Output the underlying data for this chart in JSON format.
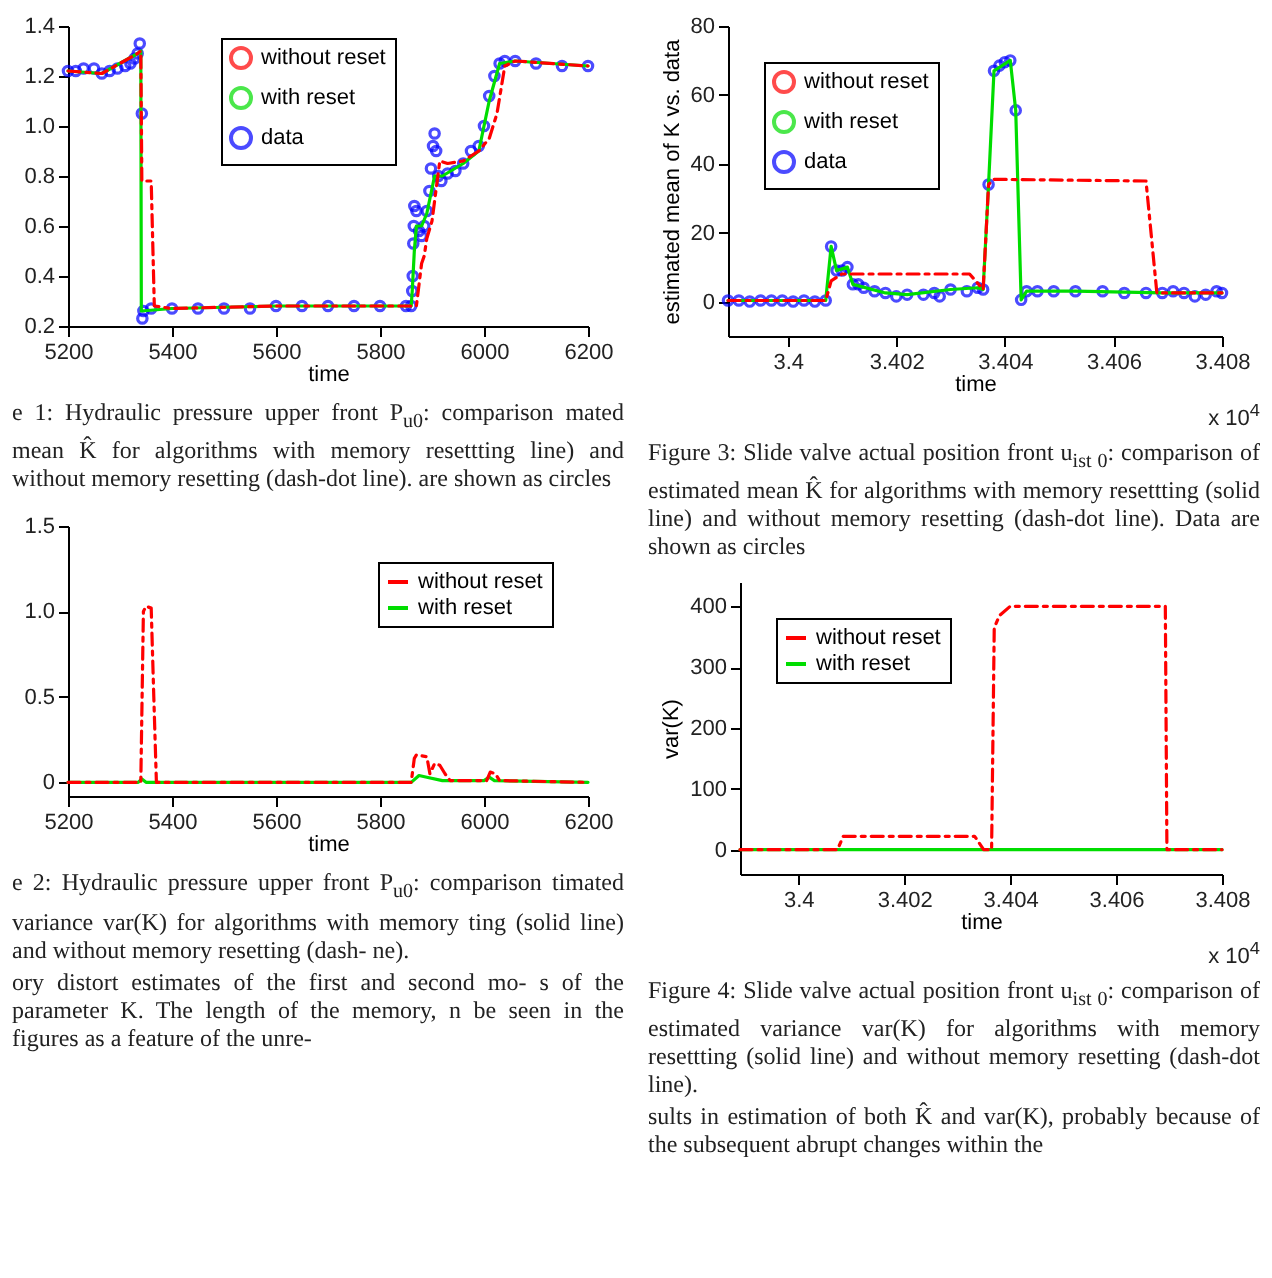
{
  "chart_data": [
    {
      "type": "line",
      "xlabel": "time",
      "xlim": [
        5200,
        6200
      ],
      "xticks": [
        5200,
        5400,
        5600,
        5800,
        6000,
        6200
      ],
      "ylim": [
        0.2,
        1.4
      ],
      "yticks": [
        0.2,
        0.4,
        0.6,
        0.8,
        {
          "value": 1,
          "label": "1.0"
        },
        1.2,
        1.4
      ],
      "grid": false,
      "legend": "top",
      "series": [
        {
          "name": "without reset",
          "color": "#ff0000",
          "line_style": "dashed",
          "x": [
            5200,
            5265,
            5334,
            5340,
            5342,
            5360,
            5366,
            5400,
            5600,
            5870,
            5880,
            5885,
            5890,
            5900,
            5915,
            5930,
            5960,
            5990,
            6010,
            6025,
            6040,
            6060,
            6200
          ],
          "values": [
            1.22,
            1.21,
            1.29,
            1.3,
            0.78,
            0.78,
            0.28,
            0.27,
            0.28,
            0.28,
            0.45,
            0.48,
            0.55,
            0.62,
            0.86,
            0.85,
            0.86,
            0.9,
            0.95,
            1.05,
            1.24,
            1.26,
            1.24
          ]
        },
        {
          "name": "with reset",
          "color": "#00dd00",
          "line_style": "solid",
          "x": [
            5200,
            5265,
            5334,
            5340,
            5341,
            5400,
            5600,
            5860,
            5862,
            5866,
            5870,
            5880,
            5890,
            5905,
            5920,
            5960,
            5990,
            6010,
            6030,
            6060,
            6200
          ],
          "values": [
            1.22,
            1.21,
            1.29,
            1.3,
            0.26,
            0.27,
            0.28,
            0.28,
            0.34,
            0.5,
            0.6,
            0.6,
            0.65,
            0.8,
            0.8,
            0.85,
            0.9,
            1.1,
            1.25,
            1.26,
            1.24
          ]
        },
        {
          "name": "data",
          "type": "scatter",
          "marker": "circle",
          "color": "#0000ff",
          "x": [
            5200,
            5215,
            5230,
            5250,
            5265,
            5280,
            5295,
            5310,
            5320,
            5328,
            5334,
            5338,
            5342,
            5343,
            5345,
            5360,
            5400,
            5450,
            5500,
            5550,
            5600,
            5650,
            5700,
            5750,
            5800,
            5850,
            5860,
            5862,
            5863,
            5864,
            5865,
            5866,
            5870,
            5875,
            5880,
            5885,
            5890,
            5895,
            5898,
            5902,
            5905,
            5908,
            5912,
            5918,
            5930,
            5945,
            5960,
            5975,
            5990,
            6000,
            6010,
            6020,
            6030,
            6040,
            6060,
            6100,
            6150,
            6200
          ],
          "values": [
            1.22,
            1.22,
            1.23,
            1.23,
            1.21,
            1.22,
            1.23,
            1.24,
            1.25,
            1.27,
            1.29,
            1.33,
            1.05,
            0.23,
            0.26,
            0.27,
            0.27,
            0.27,
            0.27,
            0.27,
            0.28,
            0.28,
            0.28,
            0.28,
            0.28,
            0.28,
            0.28,
            0.34,
            0.4,
            0.53,
            0.6,
            0.68,
            0.66,
            0.58,
            0.56,
            0.6,
            0.66,
            0.74,
            0.83,
            0.92,
            0.97,
            0.9,
            0.8,
            0.78,
            0.81,
            0.82,
            0.85,
            0.9,
            0.92,
            1.0,
            1.12,
            1.2,
            1.25,
            1.26,
            1.26,
            1.25,
            1.24,
            1.24
          ]
        }
      ],
      "annotations": [
        "e 1: Hydraulic pressure upper front P$_{u0}$: comparison mated mean K̂ for algorithms with memory resettting line) and without memory resetting (dash-dot line). are shown as circles"
      ]
    },
    {
      "type": "line",
      "xlabel": "time",
      "xlim": [
        5200,
        6200
      ],
      "xticks": [
        5200,
        5400,
        5600,
        5800,
        6000,
        6200
      ],
      "ylim": [
        -0.08,
        1.5
      ],
      "yticks": [
        0,
        0.5,
        {
          "value": 1,
          "label": "1.0"
        },
        1.5
      ],
      "grid": false,
      "legend": "top right",
      "series": [
        {
          "name": "without reset",
          "color": "#ff0000",
          "line_style": "dashed",
          "x": [
            5200,
            5340,
            5345,
            5350,
            5360,
            5365,
            5370,
            5860,
            5866,
            5870,
            5890,
            5896,
            5905,
            5915,
            5925,
            5935,
            6005,
            6012,
            6022,
            6030,
            6200
          ],
          "values": [
            0,
            0,
            1.0,
            1.03,
            1.02,
            0.5,
            0,
            0,
            0.14,
            0.16,
            0.15,
            0.05,
            0.11,
            0.1,
            0.05,
            0.01,
            0.01,
            0.06,
            0.05,
            0.01,
            0
          ]
        },
        {
          "name": "with reset",
          "color": "#00dd00",
          "line_style": "solid",
          "x": [
            5200,
            5335,
            5342,
            5350,
            5860,
            5875,
            5890,
            5920,
            6000,
            6010,
            6020,
            6200
          ],
          "values": [
            0,
            0,
            0.02,
            0,
            0,
            0.04,
            0.03,
            0.01,
            0.01,
            0.03,
            0.01,
            0
          ]
        }
      ],
      "annotations": [
        "e 2: Hydraulic pressure upper front P$_{u0}$: comparison timated variance var(K) for algorithms with memory ting (solid line) and without memory resetting (dash- ne).",
        "ory distort estimates of the first and second mo- s of the parameter K. The length of the memory, n be seen in the figures as a feature of the unre-"
      ]
    },
    {
      "type": "line",
      "xlabel": "time",
      "ylabel": "estimated mean of K vs. data",
      "xlim": [
        3.3989,
        3.408
      ],
      "xticks": [
        3.4,
        3.402,
        3.404,
        3.406,
        3.408
      ],
      "ylim": [
        -10,
        80
      ],
      "yticks": [
        0,
        20,
        40,
        60,
        80
      ],
      "grid": false,
      "legend": "top left",
      "series": [
        {
          "name": "without reset",
          "color": "#ff0000",
          "line_style": "dashed",
          "x": [
            3.3989,
            3.4007,
            3.4008,
            3.401,
            3.4012,
            3.40335,
            3.4036,
            3.4037,
            3.4038,
            3.4066,
            3.4068,
            3.4073,
            3.408
          ],
          "values": [
            0.3,
            0.3,
            6,
            8,
            8,
            8,
            3.5,
            34,
            35.5,
            35,
            2.5,
            2.5,
            2.5
          ]
        },
        {
          "name": "with reset",
          "color": "#00dd00",
          "line_style": "solid",
          "x": [
            3.3989,
            3.4007,
            3.4008,
            3.4009,
            3.4011,
            3.4012,
            3.4018,
            3.4022,
            3.403,
            3.4035,
            3.4036,
            3.4037,
            3.4038,
            3.4041,
            3.4042,
            3.4043,
            3.4044,
            3.4053,
            3.4069,
            3.408
          ],
          "values": [
            0.3,
            0.3,
            16,
            9,
            10,
            5,
            2.5,
            2,
            3.5,
            4,
            3.5,
            34,
            67,
            70,
            55.5,
            0.5,
            3,
            3,
            2.5,
            2.5
          ]
        },
        {
          "name": "data",
          "type": "scatter",
          "marker": "circle",
          "color": "#0000ff",
          "x": [
            3.3989,
            3.3991,
            3.3993,
            3.3995,
            3.3997,
            3.3999,
            3.4001,
            3.4003,
            3.4005,
            3.4007,
            3.4008,
            3.4009,
            3.401,
            3.4011,
            3.4012,
            3.4013,
            3.4014,
            3.4016,
            3.4018,
            3.402,
            3.4022,
            3.4025,
            3.4027,
            3.4028,
            3.403,
            3.4033,
            3.4035,
            3.4036,
            3.4037,
            3.4038,
            3.4039,
            3.404,
            3.4041,
            3.4042,
            3.4043,
            3.4044,
            3.4046,
            3.4049,
            3.4053,
            3.4058,
            3.4062,
            3.4066,
            3.4069,
            3.4071,
            3.4073,
            3.4075,
            3.4077,
            3.4079,
            3.408
          ],
          "values": [
            0.3,
            0.3,
            0,
            0.3,
            0.3,
            0.3,
            0,
            0.3,
            0,
            0.3,
            16,
            9,
            9,
            10,
            5,
            5,
            4,
            3,
            2.5,
            1.5,
            2,
            2,
            2.5,
            1.5,
            3.5,
            3,
            4,
            3.5,
            34,
            67,
            68.5,
            69.5,
            70,
            55.5,
            0.5,
            3,
            3,
            3,
            3,
            3,
            2.5,
            2.5,
            2.5,
            3,
            2.5,
            1.5,
            2,
            3,
            2.5
          ]
        }
      ],
      "annotations": [
        "x 10$^{4}$",
        "Figure 3: Slide valve actual position front u$_{ist 0}$: comparison of estimated mean K̂ for algorithms with memory resettting (solid line) and without memory resetting (dash-dot line). Data are shown as circles"
      ]
    },
    {
      "type": "line",
      "xlabel": "time",
      "ylabel": "var(K)",
      "xlim": [
        3.3989,
        3.408
      ],
      "xticks": [
        3.4,
        3.402,
        3.404,
        3.406,
        3.408
      ],
      "ylim": [
        -40,
        440
      ],
      "yticks": [
        0,
        100,
        200,
        300,
        400
      ],
      "grid": false,
      "legend": "top left",
      "series": [
        {
          "name": "without reset",
          "color": "#ff0000",
          "line_style": "dashed",
          "x": [
            3.3989,
            3.40074,
            3.40085,
            3.40333,
            3.4035,
            3.40365,
            3.4037,
            3.4038,
            3.404,
            3.40693,
            3.40696,
            3.408
          ],
          "values": [
            0,
            0,
            22,
            22,
            0,
            0,
            365,
            385,
            400,
            400,
            0,
            0
          ]
        },
        {
          "name": "with reset",
          "color": "#00dd00",
          "line_style": "solid",
          "x": [
            3.3989,
            3.408
          ],
          "values": [
            0,
            0
          ]
        }
      ],
      "annotations": [
        "x 10$^{4}$",
        "Figure 4: Slide valve actual position front u$_{ist 0}$: comparison of estimated variance var(K) for algorithms with memory resettting (solid line) and without memory resetting (dash-dot line).",
        "sults in estimation of both K̂ and var(K), probably because of the subsequent abrupt changes within the"
      ]
    }
  ]
}
